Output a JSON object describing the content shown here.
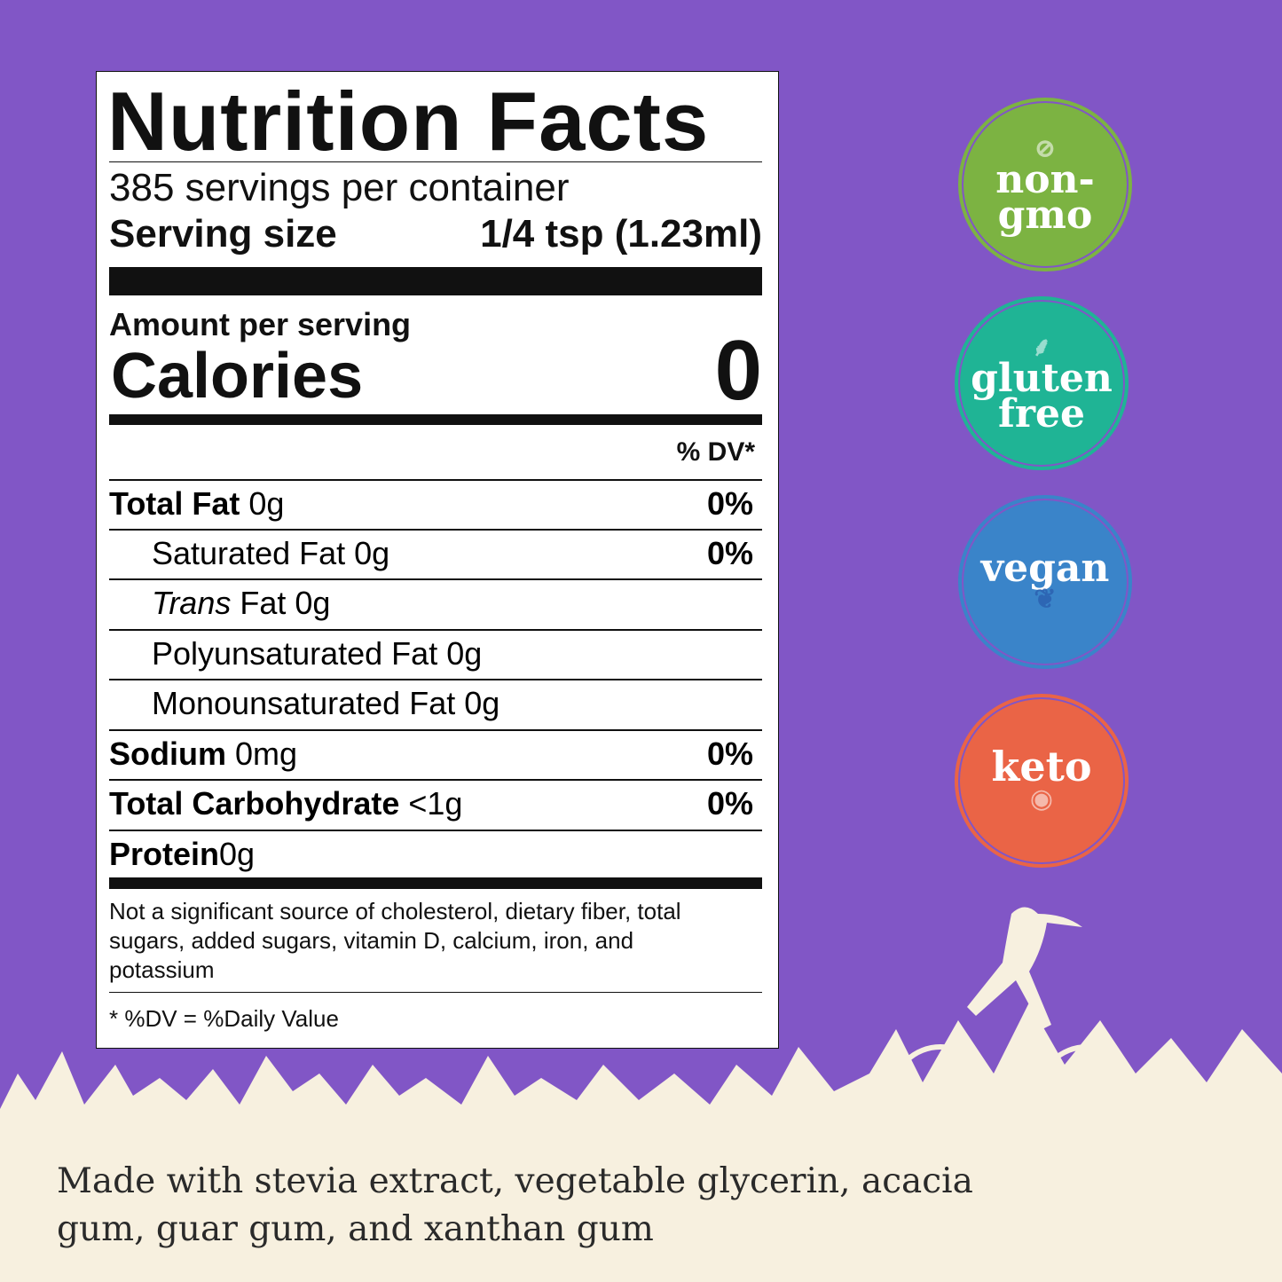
{
  "colors": {
    "background": "#8156c6",
    "cream": "#f7f0df",
    "non_gmo": "#7cb342",
    "gluten_free": "#1fb495",
    "vegan": "#3a84c9",
    "keto": "#ea6446"
  },
  "label": {
    "title": "Nutrition Facts",
    "servings": "385 servings per container",
    "serving_size_label": "Serving size",
    "serving_size_value": "1/4 tsp (1.23ml)",
    "amount_per_serving": "Amount per serving",
    "calories_label": "Calories",
    "calories_value": "0",
    "dv_header": "% DV*",
    "rows": [
      {
        "name": "Total Fat",
        "amount": "0g",
        "dv": "0%"
      },
      {
        "name": "Saturated Fat 0g",
        "dv": "0%"
      },
      {
        "name_italic": "Trans",
        "name": "Fat 0g"
      },
      {
        "name": "Polyunsaturated Fat 0g"
      },
      {
        "name": "Monounsaturated Fat 0g"
      },
      {
        "name": "Sodium",
        "amount": "0mg",
        "dv": "0%"
      },
      {
        "name": "Total Carbohydrate",
        "amount": "<1g",
        "dv": "0%"
      },
      {
        "name": "Protein",
        "amount": "0g"
      }
    ],
    "note": "Not a significant source of cholesterol, dietary fiber, total sugars, added sugars, vitamin D, calcium, iron, and potassium",
    "footnote": "* %DV = %Daily Value"
  },
  "badges": [
    {
      "line1": "non-",
      "line2": "gmo",
      "icon": "no-flask-icon"
    },
    {
      "line1": "gluten",
      "line2": "free",
      "icon": "wheat-icon"
    },
    {
      "line1": "vegan",
      "icon": "leaf-icon"
    },
    {
      "line1": "keto",
      "icon": "egg-icon"
    }
  ],
  "ingredients": "Made with stevia extract, vegetable glycerin, acacia gum, guar gum, and xanthan gum"
}
